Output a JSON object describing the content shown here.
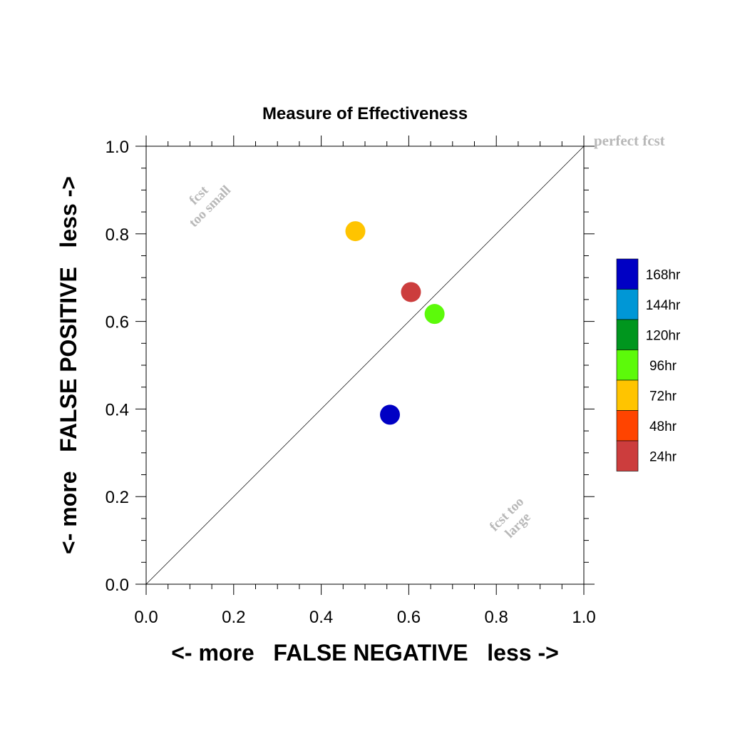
{
  "chart_data": {
    "type": "scatter",
    "title": "Measure of Effectiveness",
    "xlabel": "<- more   FALSE NEGATIVE   less ->",
    "ylabel": "<- more   FALSE POSITIVE   less ->",
    "xlim": [
      0.0,
      1.0
    ],
    "ylim": [
      0.0,
      1.0
    ],
    "xticks": [
      "0.0",
      "0.2",
      "0.4",
      "0.6",
      "0.8",
      "1.0"
    ],
    "yticks": [
      "0.0",
      "0.2",
      "0.4",
      "0.6",
      "0.8",
      "1.0"
    ],
    "tick_values": [
      0.0,
      0.2,
      0.4,
      0.6,
      0.8,
      1.0
    ],
    "grid": false,
    "diagonal_line": true,
    "legend_position": "right",
    "legend": [
      {
        "label": "168hr",
        "color": "#0000c4"
      },
      {
        "label": "144hr",
        "color": "#0097d6"
      },
      {
        "label": "120hr",
        "color": "#00961e"
      },
      {
        "label": "96hr",
        "color": "#5cfa0a"
      },
      {
        "label": "72hr",
        "color": "#ffc400"
      },
      {
        "label": "48hr",
        "color": "#ff4400"
      },
      {
        "label": "24hr",
        "color": "#cc3d3d"
      }
    ],
    "points": [
      {
        "x": 0.478,
        "y": 0.806,
        "color": "#ffc400"
      },
      {
        "x": 0.605,
        "y": 0.667,
        "color": "#cc3d3d"
      },
      {
        "x": 0.659,
        "y": 0.617,
        "color": "#5cfa0a"
      },
      {
        "x": 0.557,
        "y": 0.387,
        "color": "#0000c4"
      }
    ],
    "annotations": {
      "perfect": "perfect fcst",
      "small_line1": "fcst",
      "small_line2": "too small",
      "large_line1": "fcst too",
      "large_line2": "large"
    },
    "annotation_color": "#b8b8b8"
  }
}
